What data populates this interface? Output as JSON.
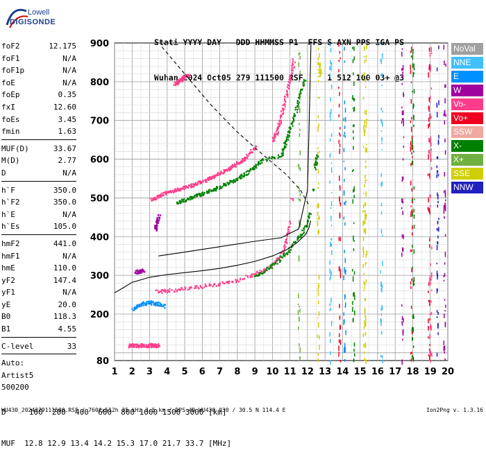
{
  "logo": {
    "line1": "Lowell",
    "line2": "DIGISONDE"
  },
  "header": {
    "line1": "Stati YYYY DAY   DDD HHMMSS P1  FFS S AXN PPS IGA PS",
    "line2": "Wuhan 2024 Oct05 279 111500 RSF     1 512 100 03+ @3"
  },
  "params": {
    "group1": [
      {
        "name": "foF2",
        "value": "12.175"
      },
      {
        "name": "foF1",
        "value": "N/A"
      },
      {
        "name": "foF1p",
        "value": "N/A"
      },
      {
        "name": "foE",
        "value": "N/A"
      },
      {
        "name": "foEp",
        "value": "0.35"
      },
      {
        "name": "fxI",
        "value": "12.60"
      },
      {
        "name": "foEs",
        "value": "3.45"
      },
      {
        "name": "fmin",
        "value": "1.63"
      }
    ],
    "group2": [
      {
        "name": "MUF(D)",
        "value": "33.67"
      },
      {
        "name": "M(D)",
        "value": "2.77"
      },
      {
        "name": "D",
        "value": "N/A"
      }
    ],
    "group3": [
      {
        "name": "h`F",
        "value": "350.0"
      },
      {
        "name": "h`F2",
        "value": "350.0"
      },
      {
        "name": "h`E",
        "value": "N/A"
      },
      {
        "name": "h`Es",
        "value": "105.0"
      }
    ],
    "group4": [
      {
        "name": "hmF2",
        "value": "441.0"
      },
      {
        "name": "hmF1",
        "value": "N/A"
      },
      {
        "name": "hmE",
        "value": "110.0"
      },
      {
        "name": "yF2",
        "value": "147.4"
      },
      {
        "name": "yF1",
        "value": "N/A"
      },
      {
        "name": "yE",
        "value": "20.0"
      },
      {
        "name": "B0",
        "value": "118.3"
      },
      {
        "name": "B1",
        "value": "4.55"
      }
    ],
    "group5": [
      {
        "name": "C-level",
        "value": "33"
      }
    ],
    "auto_lines": [
      "Auto:",
      "Artist5",
      "500200"
    ]
  },
  "legend": [
    {
      "label": "NoVal",
      "color": "#a0a0a0"
    },
    {
      "label": "NNE",
      "color": "#40c0ff"
    },
    {
      "label": "E",
      "color": "#0090ff"
    },
    {
      "label": "W",
      "color": "#a000a0"
    },
    {
      "label": "Vo-",
      "color": "#ff3c8c"
    },
    {
      "label": "Vo+",
      "color": "#f00020"
    },
    {
      "label": "SSW",
      "color": "#f0a8a0"
    },
    {
      "label": "X-",
      "color": "#008000"
    },
    {
      "label": "X+",
      "color": "#70b040"
    },
    {
      "label": "SSE",
      "color": "#d0d000"
    },
    {
      "label": "NNW",
      "color": "#2020c0"
    }
  ],
  "footer": {
    "line1": "D     100  200  400  600  800 1000 1500 3000 [km]",
    "line2": "MUF  12.8 12.9 13.4 14.2 15.3 17.0 21.7 33.7 [MHz]",
    "file": "WU430_2024279111500.RSF / 760fx512h 25 kHz 2.5 km / DPS-4D WU430 030 / 30.5 N 114.4 E",
    "version": "Ion2Png v. 1.3.16"
  },
  "chart_data": {
    "type": "scatter",
    "title": "",
    "xlabel": "",
    "ylabel": "",
    "xlim": [
      1,
      20
    ],
    "ylim": [
      80,
      900
    ],
    "x_ticks": [
      1,
      2,
      3,
      4,
      5,
      6,
      7,
      8,
      9,
      10,
      11,
      12,
      13,
      14,
      15,
      16,
      17,
      18,
      19,
      20
    ],
    "y_ticks": [
      80,
      200,
      300,
      400,
      500,
      600,
      700,
      800,
      900
    ],
    "grid": true,
    "series": [
      {
        "name": "Vo-",
        "color": "#ff3c8c",
        "points": [
          [
            1.8,
            120
          ],
          [
            2.0,
            121
          ],
          [
            2.3,
            120
          ],
          [
            2.6,
            121
          ],
          [
            2.9,
            120
          ],
          [
            3.1,
            121
          ],
          [
            3.3,
            120
          ],
          [
            3.5,
            121
          ],
          [
            3.1,
            497
          ],
          [
            3.4,
            505
          ],
          [
            3.8,
            512
          ],
          [
            4.2,
            518
          ],
          [
            4.6,
            524
          ],
          [
            5.0,
            530
          ],
          [
            5.4,
            535
          ],
          [
            5.8,
            541
          ],
          [
            6.2,
            548
          ],
          [
            6.6,
            556
          ],
          [
            7.0,
            565
          ],
          [
            7.4,
            574
          ],
          [
            7.8,
            585
          ],
          [
            8.2,
            597
          ],
          [
            8.6,
            612
          ],
          [
            9.0,
            632
          ],
          [
            4.4,
            796
          ],
          [
            4.6,
            802
          ],
          [
            4.8,
            808
          ],
          [
            5.0,
            815
          ],
          [
            5.2,
            820
          ],
          [
            10.0,
            652
          ],
          [
            10.2,
            670
          ],
          [
            10.4,
            700
          ],
          [
            10.6,
            735
          ],
          [
            10.8,
            772
          ],
          [
            11.0,
            812
          ],
          [
            11.2,
            856
          ],
          [
            3.4,
            260
          ],
          [
            4.0,
            262
          ],
          [
            5.0,
            267
          ],
          [
            6.0,
            273
          ],
          [
            7.0,
            280
          ],
          [
            8.0,
            290
          ],
          [
            9.0,
            305
          ],
          [
            9.8,
            322
          ],
          [
            10.4,
            350
          ],
          [
            10.8,
            390
          ],
          [
            11.0,
            440
          ],
          [
            11.1,
            500
          ]
        ]
      },
      {
        "name": "X-",
        "color": "#008000",
        "points": [
          [
            4.6,
            490
          ],
          [
            5.0,
            497
          ],
          [
            5.5,
            505
          ],
          [
            6.0,
            513
          ],
          [
            6.5,
            521
          ],
          [
            7.0,
            530
          ],
          [
            7.5,
            540
          ],
          [
            8.0,
            552
          ],
          [
            8.5,
            566
          ],
          [
            9.0,
            582
          ],
          [
            9.4,
            600
          ],
          [
            10.5,
            610
          ],
          [
            10.7,
            640
          ],
          [
            10.9,
            670
          ],
          [
            11.2,
            710
          ],
          [
            11.5,
            760
          ],
          [
            11.8,
            808
          ],
          [
            9.0,
            300
          ],
          [
            9.6,
            315
          ],
          [
            10.2,
            335
          ],
          [
            10.8,
            360
          ],
          [
            11.3,
            390
          ],
          [
            11.8,
            420
          ],
          [
            12.1,
            460
          ],
          [
            12.3,
            520
          ],
          [
            12.4,
            580
          ],
          [
            12.5,
            610
          ]
        ]
      },
      {
        "name": "E",
        "color": "#0090ff",
        "points": [
          [
            2.0,
            215
          ],
          [
            2.3,
            222
          ],
          [
            2.6,
            228
          ],
          [
            3.0,
            232
          ],
          [
            3.4,
            228
          ],
          [
            3.8,
            222
          ]
        ]
      },
      {
        "name": "W",
        "color": "#a000a0",
        "points": [
          [
            2.2,
            310
          ],
          [
            2.4,
            312
          ],
          [
            2.6,
            314
          ],
          [
            3.3,
            420
          ],
          [
            3.4,
            440
          ],
          [
            3.5,
            455
          ]
        ]
      },
      {
        "name": "SSE",
        "color": "#d0d000",
        "points": [
          [
            12.6,
            850
          ],
          [
            12.7,
            820
          ],
          [
            15.2,
            120
          ],
          [
            15.3,
            240
          ],
          [
            15.2,
            470
          ],
          [
            15.3,
            700
          ]
        ]
      }
    ],
    "profile_curve": {
      "name": "electron density profile",
      "points": [
        [
          1.0,
          255
        ],
        [
          1.5,
          268
        ],
        [
          2.0,
          282
        ],
        [
          3.0,
          295
        ],
        [
          4.0,
          302
        ],
        [
          5.0,
          307
        ],
        [
          6.0,
          312
        ],
        [
          7.0,
          318
        ],
        [
          8.0,
          326
        ],
        [
          9.0,
          336
        ],
        [
          10.0,
          350
        ],
        [
          10.8,
          366
        ],
        [
          11.4,
          384
        ],
        [
          11.9,
          406
        ],
        [
          12.1,
          425
        ],
        [
          12.18,
          441
        ]
      ]
    },
    "virtual_height_curve": {
      "points": [
        [
          3.5,
          350
        ],
        [
          5.0,
          360
        ],
        [
          7.0,
          374
        ],
        [
          9.0,
          388
        ],
        [
          10.5,
          397
        ],
        [
          11.5,
          420
        ],
        [
          12.0,
          520
        ],
        [
          12.1,
          700
        ],
        [
          12.2,
          900
        ]
      ]
    },
    "dashed_curve": {
      "points": [
        [
          3.7,
          890
        ],
        [
          5.0,
          820
        ],
        [
          6.5,
          740
        ],
        [
          8.0,
          670
        ],
        [
          9.5,
          610
        ],
        [
          10.8,
          560
        ],
        [
          11.6,
          520
        ],
        [
          12.1,
          480
        ]
      ]
    }
  }
}
